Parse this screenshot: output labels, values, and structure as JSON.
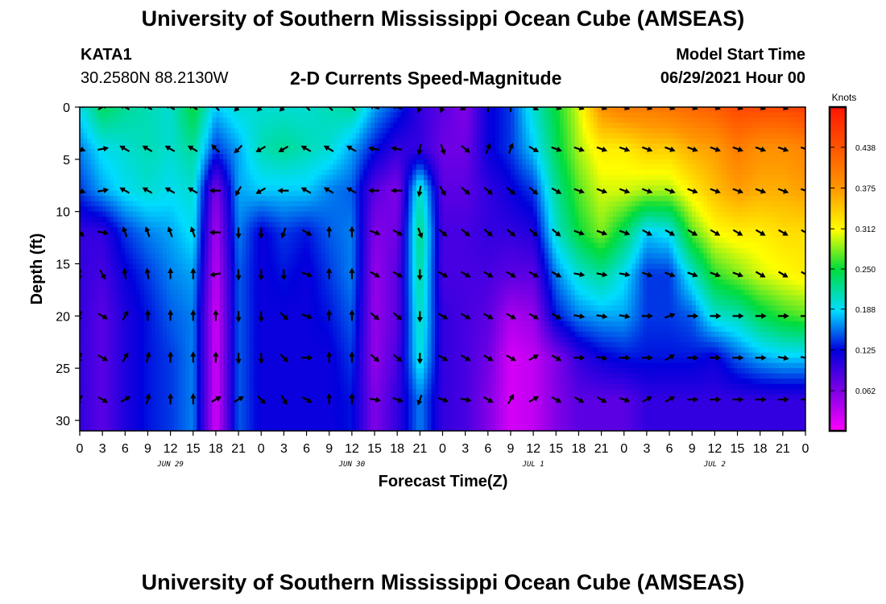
{
  "header": {
    "title_top": "University of Southern Mississippi Ocean Cube (AMSEAS)",
    "title_bottom": "University of Southern Mississippi Ocean Cube (AMSEAS)",
    "station_id": "KATA1",
    "station_coords": "30.2580N  88.2130W",
    "chart_title": "2-D Currents Speed-Magnitude",
    "model_start_label": "Model Start Time",
    "model_start_value": "06/29/2021 Hour 00"
  },
  "chart_data": {
    "type": "heatmap",
    "title": "2-D Currents Speed-Magnitude",
    "xlabel": "Forecast Time(Z)",
    "ylabel": "Depth (ft)",
    "x_range_hours": [
      0,
      96
    ],
    "ylim": [
      0,
      31
    ],
    "y_ticks": [
      0,
      5,
      10,
      15,
      20,
      25,
      30
    ],
    "x_tick_labels": [
      "0",
      "3",
      "6",
      "9",
      "12",
      "15",
      "18",
      "21",
      "0",
      "3",
      "6",
      "9",
      "12",
      "15",
      "18",
      "21",
      "0",
      "3",
      "6",
      "9",
      "12",
      "15",
      "18",
      "21",
      "0",
      "3",
      "6",
      "9",
      "12",
      "15",
      "18",
      "21",
      "0"
    ],
    "date_labels": [
      {
        "hour": 12,
        "label": "JUN 29"
      },
      {
        "hour": 36,
        "label": "JUN 30"
      },
      {
        "hour": 60,
        "label": "JUL 1"
      },
      {
        "hour": 84,
        "label": "JUL 2"
      }
    ],
    "colorbar": {
      "label": "Knots",
      "range": [
        0,
        0.5
      ],
      "ticks": [
        "0.438",
        "0.375",
        "0.312",
        "0.250",
        "0.188",
        "0.125",
        "0.062"
      ]
    },
    "vector_depths_ft": [
      0,
      4,
      8,
      12,
      16,
      20,
      24,
      28
    ],
    "columns": [
      {
        "hour": 0,
        "depth_speeds": [
          0.19,
          0.16,
          0.14,
          0.1,
          0.1,
          0.1,
          0.1,
          0.1
        ],
        "directions_deg": [
          45,
          110,
          110,
          135,
          190,
          200,
          200,
          210
        ]
      },
      {
        "hour": 3,
        "depth_speeds": [
          0.24,
          0.19,
          0.17,
          0.1,
          0.09,
          0.08,
          0.08,
          0.08
        ],
        "directions_deg": [
          60,
          80,
          80,
          100,
          150,
          120,
          120,
          120
        ]
      },
      {
        "hour": 6,
        "depth_speeds": [
          0.22,
          0.2,
          0.19,
          0.14,
          0.12,
          0.11,
          0.11,
          0.11
        ],
        "directions_deg": [
          300,
          300,
          300,
          340,
          350,
          30,
          30,
          60
        ]
      },
      {
        "hour": 9,
        "depth_speeds": [
          0.21,
          0.21,
          0.2,
          0.16,
          0.14,
          0.13,
          0.13,
          0.13
        ],
        "directions_deg": [
          300,
          300,
          300,
          340,
          350,
          0,
          15,
          15
        ]
      },
      {
        "hour": 12,
        "depth_speeds": [
          0.2,
          0.2,
          0.19,
          0.17,
          0.16,
          0.15,
          0.14,
          0.14
        ],
        "directions_deg": [
          300,
          300,
          300,
          340,
          0,
          0,
          0,
          0
        ]
      },
      {
        "hour": 15,
        "depth_speeds": [
          0.25,
          0.22,
          0.2,
          0.19,
          0.17,
          0.16,
          0.16,
          0.16
        ],
        "directions_deg": [
          300,
          300,
          300,
          340,
          0,
          0,
          0,
          0
        ]
      },
      {
        "hour": 18,
        "depth_speeds": [
          0.18,
          0.14,
          0.06,
          0.04,
          0.03,
          0.02,
          0.02,
          0.02
        ],
        "directions_deg": [
          315,
          315,
          270,
          270,
          260,
          0,
          0,
          60
        ]
      },
      {
        "hour": 21,
        "depth_speeds": [
          0.2,
          0.17,
          0.17,
          0.16,
          0.15,
          0.15,
          0.15,
          0.15
        ],
        "directions_deg": [
          225,
          225,
          210,
          180,
          180,
          180,
          180,
          60
        ]
      },
      {
        "hour": 24,
        "depth_speeds": [
          0.2,
          0.21,
          0.18,
          0.12,
          0.12,
          0.12,
          0.12,
          0.12
        ],
        "directions_deg": [
          225,
          240,
          240,
          180,
          180,
          180,
          180,
          135
        ]
      },
      {
        "hour": 27,
        "depth_speeds": [
          0.2,
          0.22,
          0.18,
          0.14,
          0.13,
          0.12,
          0.12,
          0.12
        ],
        "directions_deg": [
          225,
          240,
          270,
          200,
          180,
          135,
          135,
          150
        ]
      },
      {
        "hour": 30,
        "depth_speeds": [
          0.2,
          0.21,
          0.18,
          0.13,
          0.12,
          0.12,
          0.12,
          0.12
        ],
        "directions_deg": [
          315,
          300,
          300,
          120,
          110,
          110,
          90,
          120
        ]
      },
      {
        "hour": 33,
        "depth_speeds": [
          0.21,
          0.2,
          0.16,
          0.15,
          0.14,
          0.13,
          0.12,
          0.12
        ],
        "directions_deg": [
          315,
          300,
          300,
          0,
          0,
          0,
          0,
          0
        ]
      },
      {
        "hour": 36,
        "depth_speeds": [
          0.22,
          0.17,
          0.15,
          0.16,
          0.16,
          0.15,
          0.14,
          0.13
        ],
        "directions_deg": [
          315,
          300,
          300,
          0,
          0,
          0,
          0,
          0
        ]
      },
      {
        "hour": 39,
        "depth_speeds": [
          0.17,
          0.13,
          0.08,
          0.06,
          0.05,
          0.05,
          0.05,
          0.06
        ],
        "directions_deg": [
          290,
          280,
          270,
          110,
          120,
          130,
          130,
          100
        ]
      },
      {
        "hour": 42,
        "depth_speeds": [
          0.14,
          0.1,
          0.06,
          0.07,
          0.08,
          0.08,
          0.09,
          0.1
        ],
        "directions_deg": [
          290,
          280,
          270,
          120,
          120,
          130,
          130,
          110
        ]
      },
      {
        "hour": 45,
        "depth_speeds": [
          0.1,
          0.1,
          0.21,
          0.23,
          0.22,
          0.21,
          0.2,
          0.16
        ],
        "directions_deg": [
          200,
          190,
          190,
          160,
          180,
          180,
          180,
          200
        ]
      },
      {
        "hour": 48,
        "depth_speeds": [
          0.08,
          0.07,
          0.08,
          0.09,
          0.09,
          0.1,
          0.1,
          0.1
        ],
        "directions_deg": [
          200,
          160,
          150,
          130,
          120,
          120,
          120,
          110
        ]
      },
      {
        "hour": 51,
        "depth_speeds": [
          0.06,
          0.07,
          0.08,
          0.09,
          0.09,
          0.09,
          0.09,
          0.09
        ],
        "directions_deg": [
          240,
          130,
          130,
          130,
          120,
          120,
          120,
          100
        ]
      },
      {
        "hour": 54,
        "depth_speeds": [
          0.12,
          0.12,
          0.1,
          0.1,
          0.09,
          0.08,
          0.07,
          0.06
        ],
        "directions_deg": [
          0,
          20,
          130,
          130,
          120,
          120,
          120,
          120
        ]
      },
      {
        "hour": 57,
        "depth_speeds": [
          0.14,
          0.14,
          0.12,
          0.1,
          0.08,
          0.04,
          0.02,
          0.02
        ],
        "directions_deg": [
          0,
          20,
          130,
          130,
          120,
          120,
          120,
          30
        ]
      },
      {
        "hour": 60,
        "depth_speeds": [
          0.2,
          0.18,
          0.14,
          0.11,
          0.08,
          0.05,
          0.03,
          0.03
        ],
        "directions_deg": [
          120,
          120,
          130,
          130,
          120,
          120,
          60,
          60
        ]
      },
      {
        "hour": 63,
        "depth_speeds": [
          0.25,
          0.24,
          0.22,
          0.2,
          0.16,
          0.13,
          0.06,
          0.06
        ],
        "directions_deg": [
          110,
          110,
          120,
          130,
          120,
          120,
          120,
          120
        ]
      },
      {
        "hour": 66,
        "depth_speeds": [
          0.3,
          0.29,
          0.27,
          0.25,
          0.2,
          0.16,
          0.1,
          0.08
        ],
        "directions_deg": [
          110,
          110,
          110,
          110,
          100,
          100,
          90,
          120
        ]
      },
      {
        "hour": 69,
        "depth_speeds": [
          0.38,
          0.32,
          0.3,
          0.28,
          0.22,
          0.17,
          0.12,
          0.08
        ],
        "directions_deg": [
          110,
          110,
          110,
          110,
          100,
          100,
          100,
          120
        ]
      },
      {
        "hour": 72,
        "depth_speeds": [
          0.4,
          0.32,
          0.3,
          0.24,
          0.19,
          0.17,
          0.13,
          0.08
        ],
        "directions_deg": [
          110,
          110,
          110,
          110,
          100,
          100,
          90,
          110
        ]
      },
      {
        "hour": 75,
        "depth_speeds": [
          0.4,
          0.34,
          0.29,
          0.18,
          0.14,
          0.14,
          0.13,
          0.1
        ],
        "directions_deg": [
          110,
          110,
          110,
          120,
          110,
          90,
          90,
          60
        ]
      },
      {
        "hour": 78,
        "depth_speeds": [
          0.41,
          0.34,
          0.29,
          0.19,
          0.14,
          0.14,
          0.13,
          0.1
        ],
        "directions_deg": [
          110,
          110,
          110,
          120,
          110,
          70,
          60,
          60
        ]
      },
      {
        "hour": 81,
        "depth_speeds": [
          0.42,
          0.36,
          0.32,
          0.27,
          0.2,
          0.15,
          0.13,
          0.1
        ],
        "directions_deg": [
          110,
          110,
          110,
          120,
          110,
          90,
          90,
          90
        ]
      },
      {
        "hour": 84,
        "depth_speeds": [
          0.43,
          0.37,
          0.35,
          0.31,
          0.26,
          0.2,
          0.12,
          0.1
        ],
        "directions_deg": [
          110,
          110,
          110,
          120,
          110,
          90,
          90,
          90
        ]
      },
      {
        "hour": 87,
        "depth_speeds": [
          0.45,
          0.4,
          0.37,
          0.32,
          0.28,
          0.21,
          0.15,
          0.1
        ],
        "directions_deg": [
          110,
          110,
          110,
          120,
          110,
          90,
          90,
          90
        ]
      },
      {
        "hour": 90,
        "depth_speeds": [
          0.45,
          0.38,
          0.36,
          0.32,
          0.3,
          0.24,
          0.17,
          0.1
        ],
        "directions_deg": [
          110,
          110,
          110,
          120,
          120,
          90,
          90,
          90
        ]
      },
      {
        "hour": 93,
        "depth_speeds": [
          0.45,
          0.38,
          0.36,
          0.33,
          0.31,
          0.26,
          0.18,
          0.1
        ],
        "directions_deg": [
          110,
          110,
          110,
          120,
          120,
          90,
          100,
          90
        ]
      },
      {
        "hour": 96,
        "depth_speeds": [
          0.46,
          0.39,
          0.37,
          0.33,
          0.32,
          0.27,
          0.18,
          0.1
        ],
        "directions_deg": [
          110,
          110,
          110,
          120,
          120,
          90,
          100,
          90
        ]
      }
    ]
  }
}
